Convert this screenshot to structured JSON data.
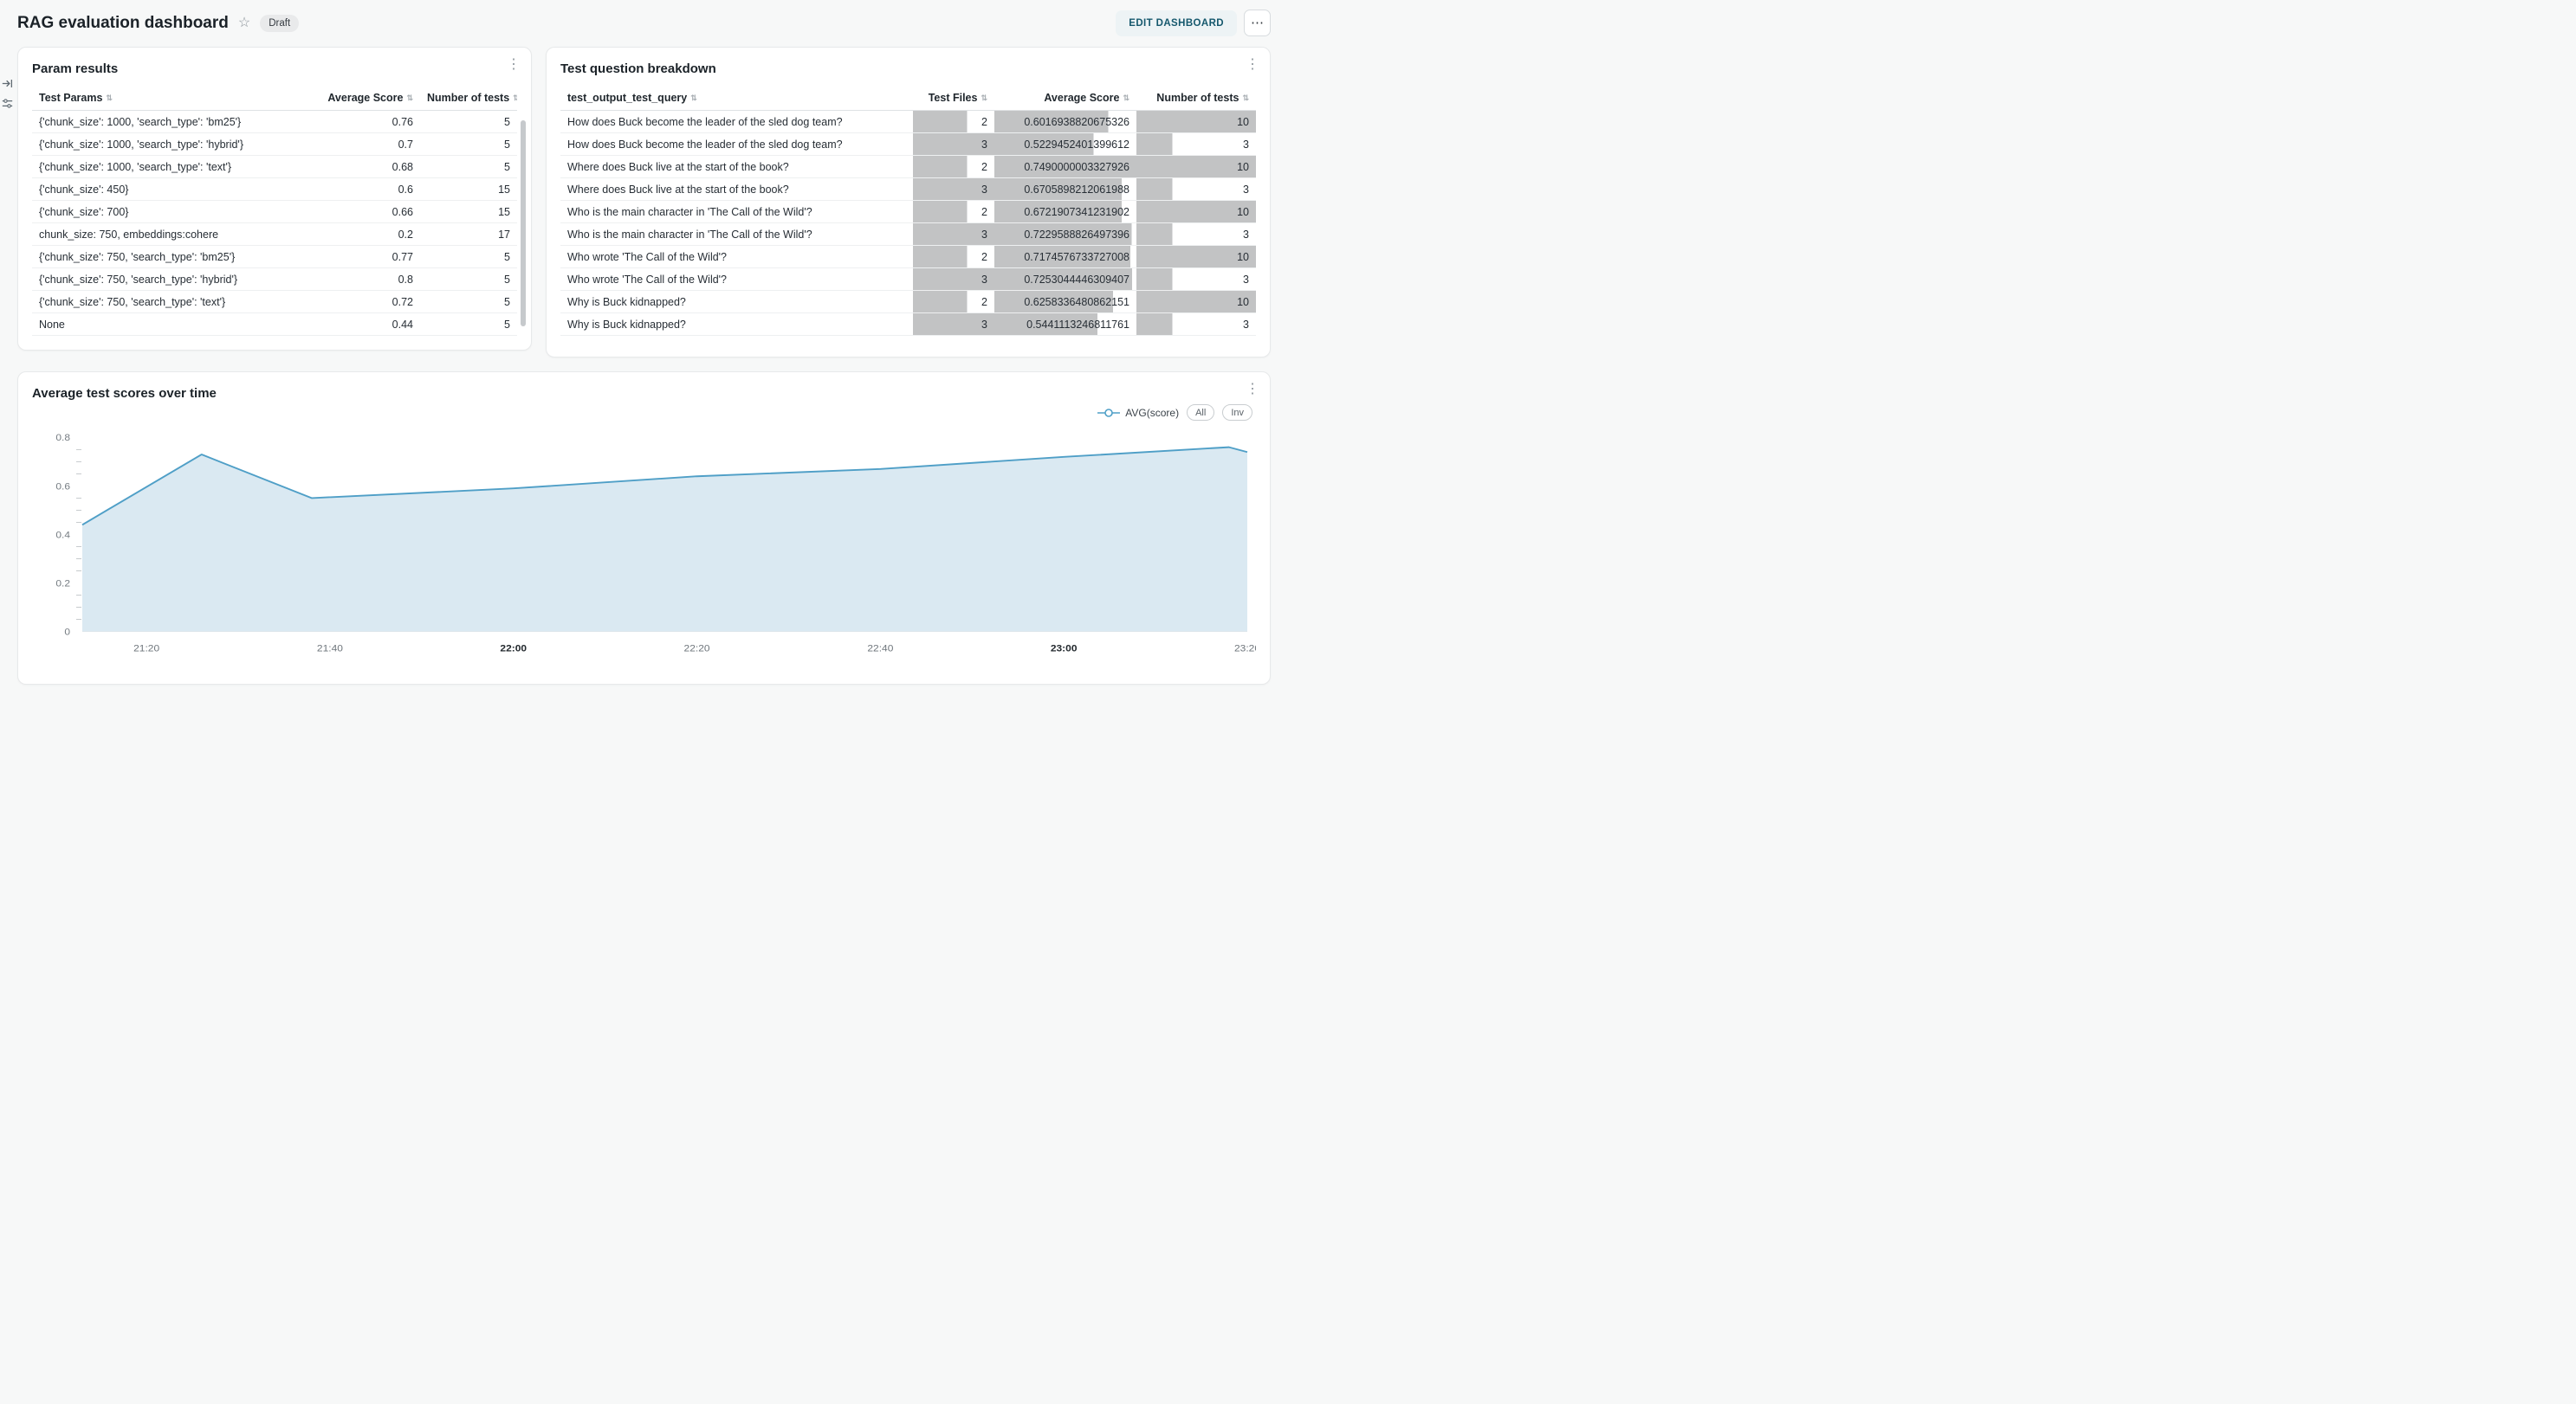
{
  "icons": {
    "star": "☆",
    "card_menu": "⋮",
    "more": "⋯",
    "sort": "⇅"
  },
  "header": {
    "title": "RAG evaluation dashboard",
    "status_badge": "Draft",
    "edit_button_label": "EDIT DASHBOARD"
  },
  "param_results": {
    "title": "Param results",
    "columns": [
      "Test Params",
      "Average Score",
      "Number of tests"
    ],
    "rows": [
      {
        "params": "{'chunk_size': 1000, 'search_type': 'bm25'}",
        "avg": "0.76",
        "n": "5"
      },
      {
        "params": "{'chunk_size': 1000, 'search_type': 'hybrid'}",
        "avg": "0.7",
        "n": "5"
      },
      {
        "params": "{'chunk_size': 1000, 'search_type': 'text'}",
        "avg": "0.68",
        "n": "5"
      },
      {
        "params": "{'chunk_size': 450}",
        "avg": "0.6",
        "n": "15"
      },
      {
        "params": "{'chunk_size': 700}",
        "avg": "0.66",
        "n": "15"
      },
      {
        "params": "chunk_size: 750, embeddings:cohere",
        "avg": "0.2",
        "n": "17"
      },
      {
        "params": "{'chunk_size': 750, 'search_type': 'bm25'}",
        "avg": "0.77",
        "n": "5"
      },
      {
        "params": "{'chunk_size': 750, 'search_type': 'hybrid'}",
        "avg": "0.8",
        "n": "5"
      },
      {
        "params": "{'chunk_size': 750, 'search_type': 'text'}",
        "avg": "0.72",
        "n": "5"
      },
      {
        "params": "None",
        "avg": "0.44",
        "n": "5"
      }
    ]
  },
  "question_breakdown": {
    "title": "Test question breakdown",
    "columns": [
      "test_output_test_query",
      "Test Files",
      "Average Score",
      "Number of tests"
    ],
    "bar_color": "#c2c3c4",
    "rows": [
      {
        "query": "How does Buck become the leader of the sled dog team?",
        "files": "2",
        "avg": "0.6016938820675326",
        "n": "10"
      },
      {
        "query": "How does Buck become the leader of the sled dog team?",
        "files": "3",
        "avg": "0.5229452401399612",
        "n": "3"
      },
      {
        "query": "Where does Buck live at the start of the book?",
        "files": "2",
        "avg": "0.7490000003327926",
        "n": "10"
      },
      {
        "query": "Where does Buck live at the start of the book?",
        "files": "3",
        "avg": "0.6705898212061988",
        "n": "3"
      },
      {
        "query": "Who is the main character in 'The Call of the Wild'?",
        "files": "2",
        "avg": "0.6721907341231902",
        "n": "10"
      },
      {
        "query": "Who is the main character in 'The Call of the Wild'?",
        "files": "3",
        "avg": "0.7229588826497396",
        "n": "3"
      },
      {
        "query": "Who wrote 'The Call of the Wild'?",
        "files": "2",
        "avg": "0.7174576733727008",
        "n": "10"
      },
      {
        "query": "Who wrote 'The Call of the Wild'?",
        "files": "3",
        "avg": "0.7253044446309407",
        "n": "3"
      },
      {
        "query": "Why is Buck kidnapped?",
        "files": "2",
        "avg": "0.6258336480862151",
        "n": "10"
      },
      {
        "query": "Why is Buck kidnapped?",
        "files": "3",
        "avg": "0.5441113246811761",
        "n": "3"
      }
    ]
  },
  "chart_data": {
    "type": "area",
    "title": "Average test scores over time",
    "legend": [
      {
        "name": "AVG(score)",
        "color": "#4f9fc7"
      }
    ],
    "controls": [
      "All",
      "Inv"
    ],
    "x": [
      "21:13",
      "21:26",
      "21:38",
      "22:00",
      "22:20",
      "22:40",
      "23:00",
      "23:18",
      "23:20"
    ],
    "values": [
      0.44,
      0.73,
      0.55,
      0.59,
      0.64,
      0.67,
      0.72,
      0.76,
      0.74
    ],
    "xticks": [
      "21:20",
      "21:40",
      "22:00",
      "22:20",
      "22:40",
      "23:00",
      "23:20"
    ],
    "bold_xticks": [
      "22:00",
      "23:00"
    ],
    "ylim": [
      0,
      0.8
    ],
    "yticks": [
      0,
      0.2,
      0.4,
      0.6,
      0.8
    ],
    "minor_ytick_step": 0.05,
    "xlabel": "",
    "ylabel": "",
    "grid": false,
    "legend_position": "top-right",
    "area_fill": "#dae9f2",
    "line_color": "#4f9fc7"
  }
}
